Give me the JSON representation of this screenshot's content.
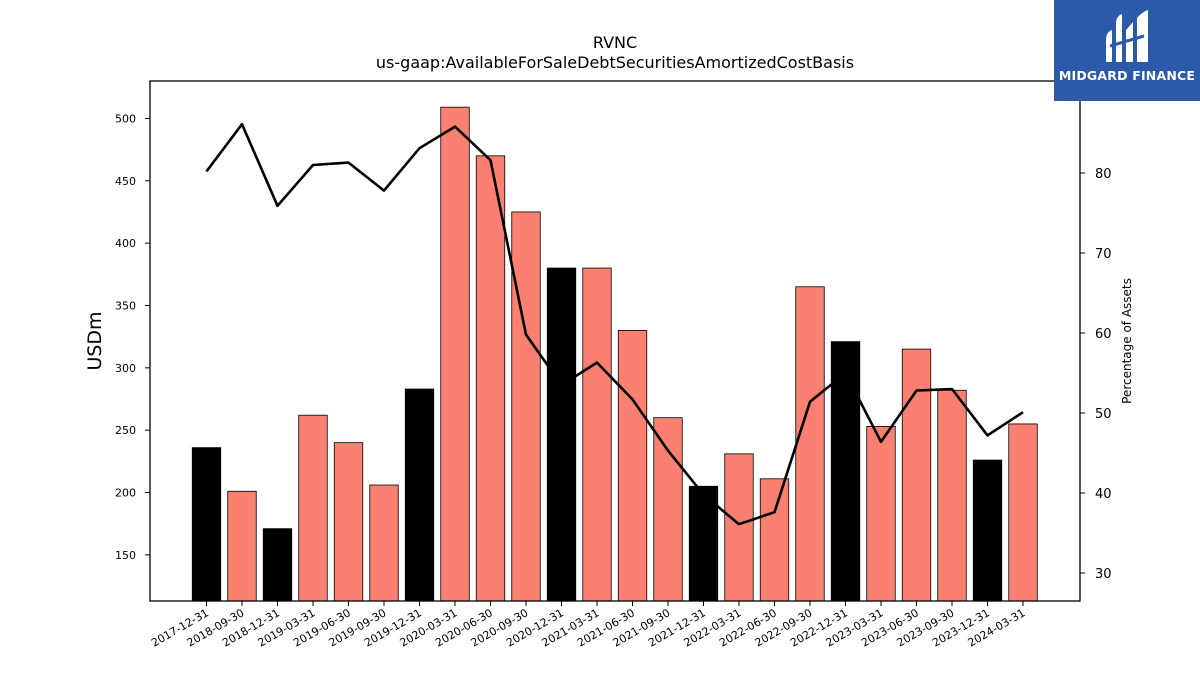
{
  "chart_data": {
    "type": "bar",
    "title": "RVNC",
    "subtitle": "us-gaap:AvailableForSaleDebtSecuritiesAmortizedCostBasis",
    "ylabel": "USDm",
    "y2label": "Percentage of Assets",
    "ylim": [
      113,
      530
    ],
    "y2lim": [
      26.5,
      91.5
    ],
    "yticks": [
      150,
      200,
      250,
      300,
      350,
      400,
      450,
      500
    ],
    "y2ticks": [
      30,
      40,
      50,
      60,
      70,
      80
    ],
    "categories": [
      "2017-12-31",
      "2018-09-30",
      "2018-12-31",
      "2019-03-31",
      "2019-06-30",
      "2019-09-30",
      "2019-12-31",
      "2020-03-31",
      "2020-06-30",
      "2020-09-30",
      "2020-12-31",
      "2021-03-31",
      "2021-06-30",
      "2021-09-30",
      "2021-12-31",
      "2022-03-31",
      "2022-06-30",
      "2022-09-30",
      "2022-12-31",
      "2023-03-31",
      "2023-06-30",
      "2023-09-30",
      "2023-12-31",
      "2024-03-31"
    ],
    "series": [
      {
        "kind": "bar",
        "values": [
          236,
          201,
          171,
          262,
          240,
          206,
          283,
          509,
          470,
          425,
          380,
          380,
          330,
          260,
          205,
          231,
          211,
          365,
          321,
          253,
          315,
          282,
          226,
          255
        ],
        "colors": [
          "#000000",
          "#fa8072",
          "#000000",
          "#fa8072",
          "#fa8072",
          "#fa8072",
          "#000000",
          "#fa8072",
          "#fa8072",
          "#fa8072",
          "#000000",
          "#fa8072",
          "#fa8072",
          "#fa8072",
          "#000000",
          "#fa8072",
          "#fa8072",
          "#fa8072",
          "#000000",
          "#fa8072",
          "#fa8072",
          "#fa8072",
          "#000000",
          "#fa8072"
        ]
      },
      {
        "kind": "line",
        "axis": "right",
        "color": "#000000",
        "values": [
          80.2,
          86.1,
          75.9,
          81.0,
          81.3,
          77.8,
          83.1,
          85.8,
          81.6,
          59.8,
          53.5,
          56.3,
          51.7,
          45.3,
          39.8,
          36.1,
          37.6,
          51.4,
          55.0,
          46.4,
          52.8,
          53.0,
          47.2,
          50.1
        ]
      }
    ],
    "grid": false,
    "legend": "none"
  },
  "logo": {
    "text": "MIDGARD FINANCE"
  },
  "colors": {
    "bar_primary": "#fa8072",
    "bar_alternate": "#000000",
    "line": "#000000",
    "logo_bg": "#2b5aa8"
  }
}
